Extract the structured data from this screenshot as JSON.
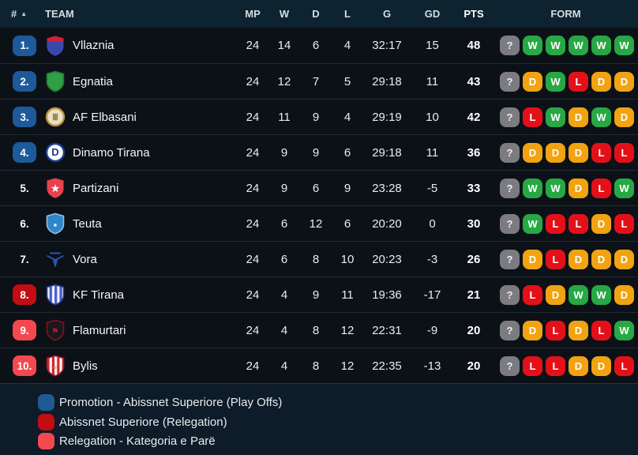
{
  "table": {
    "headers": {
      "pos": "#",
      "team": "TEAM",
      "mp": "MP",
      "w": "W",
      "d": "D",
      "l": "L",
      "g": "G",
      "gd": "GD",
      "pts": "PTS",
      "form": "FORM"
    },
    "sort_icon": "▲",
    "rows": [
      {
        "pos": "1.",
        "badge": "promotion",
        "team": "Vllaznia",
        "mp": 24,
        "w": 14,
        "d": 6,
        "l": 4,
        "g": "32:17",
        "gd": 15,
        "pts": 48,
        "form": [
          "?",
          "W",
          "W",
          "W",
          "W",
          "W"
        ],
        "logo": {
          "shape": "shield",
          "bg": "#3a48ae",
          "top": "#d42034"
        }
      },
      {
        "pos": "2.",
        "badge": "promotion",
        "team": "Egnatia",
        "mp": 24,
        "w": 12,
        "d": 7,
        "l": 5,
        "g": "29:18",
        "gd": 11,
        "pts": 43,
        "form": [
          "?",
          "D",
          "W",
          "L",
          "D",
          "D"
        ],
        "logo": {
          "shape": "shield",
          "bg": "#2f9e44",
          "border": "#1f7a33"
        }
      },
      {
        "pos": "3.",
        "badge": "promotion",
        "team": "AF Elbasani",
        "mp": 24,
        "w": 11,
        "d": 9,
        "l": 4,
        "g": "29:19",
        "gd": 10,
        "pts": 42,
        "form": [
          "?",
          "L",
          "W",
          "D",
          "W",
          "D"
        ],
        "logo": {
          "shape": "circle",
          "bg": "#e9e0c4",
          "border": "#bb953c",
          "glyph": "Ⅲ",
          "glyphColor": "#8a6d24",
          "glyphSize": 11
        }
      },
      {
        "pos": "4.",
        "badge": "promotion",
        "team": "Dinamo Tirana",
        "mp": 24,
        "w": 9,
        "d": 9,
        "l": 6,
        "g": "29:18",
        "gd": 11,
        "pts": 36,
        "form": [
          "?",
          "D",
          "D",
          "D",
          "L",
          "L"
        ],
        "logo": {
          "shape": "circle",
          "bg": "#ffffff",
          "border": "#1e3f96",
          "glyph": "D",
          "glyphColor": "#1e3f96",
          "glyphSize": 13
        }
      },
      {
        "pos": "5.",
        "badge": null,
        "team": "Partizani",
        "mp": 24,
        "w": 9,
        "d": 6,
        "l": 9,
        "g": "23:28",
        "gd": -5,
        "pts": 33,
        "form": [
          "?",
          "W",
          "W",
          "D",
          "L",
          "W"
        ],
        "logo": {
          "shape": "shield",
          "bg": "#e8414f",
          "glyph": "★",
          "glyphColor": "#ffffff",
          "glyphSize": 12
        }
      },
      {
        "pos": "6.",
        "badge": null,
        "team": "Teuta",
        "mp": 24,
        "w": 6,
        "d": 12,
        "l": 6,
        "g": "20:20",
        "gd": 0,
        "pts": 30,
        "form": [
          "?",
          "W",
          "L",
          "L",
          "D",
          "L"
        ],
        "logo": {
          "shape": "shield",
          "bg": "#2f86c9",
          "border": "#8fbfe4",
          "glyph": "●",
          "glyphColor": "#ddeaf5",
          "glyphSize": 9
        }
      },
      {
        "pos": "7.",
        "badge": null,
        "team": "Vora",
        "mp": 24,
        "w": 6,
        "d": 8,
        "l": 10,
        "g": "20:23",
        "gd": -3,
        "pts": 26,
        "form": [
          "?",
          "D",
          "L",
          "D",
          "D",
          "D"
        ],
        "logo": {
          "shape": "v",
          "bg": "#2a55b0"
        }
      },
      {
        "pos": "8.",
        "badge": "relegation_dark",
        "team": "KF Tirana",
        "mp": 24,
        "w": 4,
        "d": 9,
        "l": 11,
        "g": "19:36",
        "gd": -17,
        "pts": 21,
        "form": [
          "?",
          "L",
          "D",
          "W",
          "W",
          "D"
        ],
        "logo": {
          "shape": "shield",
          "bg": "#eef1f7",
          "stripes": "#4a5fd0",
          "border": "#2a3a8c"
        }
      },
      {
        "pos": "9.",
        "badge": "relegation_light",
        "team": "Flamurtari",
        "mp": 24,
        "w": 4,
        "d": 8,
        "l": 12,
        "g": "22:31",
        "gd": -9,
        "pts": 20,
        "form": [
          "?",
          "D",
          "L",
          "D",
          "L",
          "W"
        ],
        "logo": {
          "shape": "shield",
          "bg": "#181820",
          "border": "#8a1016",
          "glyph": "⚑",
          "glyphColor": "#c01320",
          "glyphSize": 10
        }
      },
      {
        "pos": "10.",
        "badge": "relegation_light",
        "team": "Bylis",
        "mp": 24,
        "w": 4,
        "d": 8,
        "l": 12,
        "g": "22:35",
        "gd": -13,
        "pts": 20,
        "form": [
          "?",
          "L",
          "L",
          "D",
          "D",
          "L"
        ],
        "logo": {
          "shape": "shield",
          "bg": "#d3242f",
          "stripes": "#f3f3f3",
          "border": "#a81a22",
          "glyph": "●",
          "glyphColor": "#e8c33a",
          "glyphSize": 8
        }
      }
    ]
  },
  "legend": {
    "items": [
      {
        "color": "#1e5a96",
        "label": "Promotion - Abissnet Superiore (Play Offs)"
      },
      {
        "color": "#c20d12",
        "label": "Abissnet Superiore (Relegation)"
      },
      {
        "color": "#f4484f",
        "label": "Relegation - Kategoria e Parë"
      }
    ]
  },
  "colors": {
    "badge_promotion": "#1d5a9a",
    "badge_relegation_dark": "#c20d12",
    "badge_relegation_light": "#f4484f",
    "form_w": "#27a845",
    "form_d": "#f1a311",
    "form_l": "#e41019",
    "form_q": "#7c7c80"
  }
}
